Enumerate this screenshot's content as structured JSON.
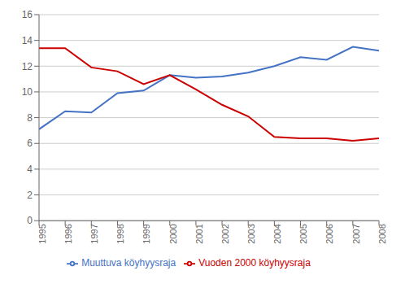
{
  "chart_data": {
    "type": "line",
    "x": [
      1995,
      1996,
      1997,
      1998,
      1999,
      2000,
      2001,
      2002,
      2003,
      2004,
      2005,
      2006,
      2007,
      2008
    ],
    "series": [
      {
        "name": "Muuttuva köyhyysraja",
        "color": "#4472C4",
        "values": [
          7.1,
          8.5,
          8.4,
          9.9,
          10.1,
          11.3,
          11.1,
          11.2,
          11.5,
          12.0,
          12.7,
          12.5,
          13.5,
          13.2
        ]
      },
      {
        "name": "Vuoden 2000 köyhyysraja",
        "color": "#CC0000",
        "values": [
          13.4,
          13.4,
          11.9,
          11.6,
          10.6,
          11.3,
          10.2,
          9.0,
          8.1,
          6.5,
          6.4,
          6.4,
          6.2,
          6.4
        ]
      }
    ],
    "xlim": [
      1995,
      2008
    ],
    "xticks": [
      1995,
      1996,
      1997,
      1998,
      1999,
      2000,
      2001,
      2002,
      2003,
      2004,
      2005,
      2006,
      2007,
      2008
    ],
    "ylim": [
      0,
      16
    ],
    "yticks": [
      0,
      2,
      4,
      6,
      8,
      10,
      12,
      14,
      16
    ],
    "grid": true,
    "legend": "bottom"
  }
}
